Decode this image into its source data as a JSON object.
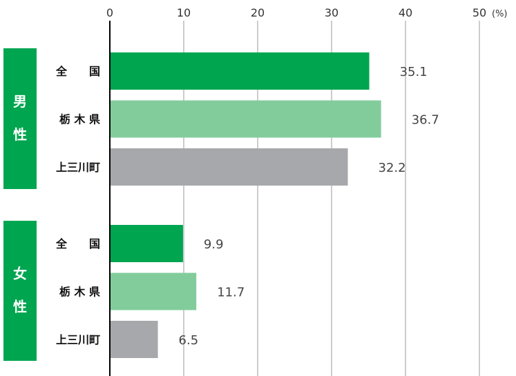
{
  "chart_data": {
    "type": "bar",
    "orientation": "horizontal",
    "unit": "(%)",
    "xlim": [
      0,
      50
    ],
    "ticks": [
      "0",
      "10",
      "20",
      "30",
      "40",
      "50"
    ],
    "grid": true,
    "colors": {
      "national": "#00a550",
      "prefecture": "#82cc9c",
      "town": "#a7a8ab",
      "group_band": "#00a550"
    },
    "groups": [
      {
        "label": "男\n性",
        "label_chars": [
          "男",
          "性"
        ],
        "bars": [
          {
            "category": "全　　国",
            "value": 35.1,
            "value_label": "35.1",
            "color_key": "national"
          },
          {
            "category": "栃 木 県",
            "value": 36.7,
            "value_label": "36.7",
            "color_key": "prefecture"
          },
          {
            "category": "上三川町",
            "value": 32.2,
            "value_label": "32.2",
            "color_key": "town"
          }
        ]
      },
      {
        "label": "女\n性",
        "label_chars": [
          "女",
          "性"
        ],
        "bars": [
          {
            "category": "全　　国",
            "value": 9.9,
            "value_label": "9.9",
            "color_key": "national"
          },
          {
            "category": "栃 木 県",
            "value": 11.7,
            "value_label": "11.7",
            "color_key": "prefecture"
          },
          {
            "category": "上三川町",
            "value": 6.5,
            "value_label": "6.5",
            "color_key": "town"
          }
        ]
      }
    ]
  }
}
